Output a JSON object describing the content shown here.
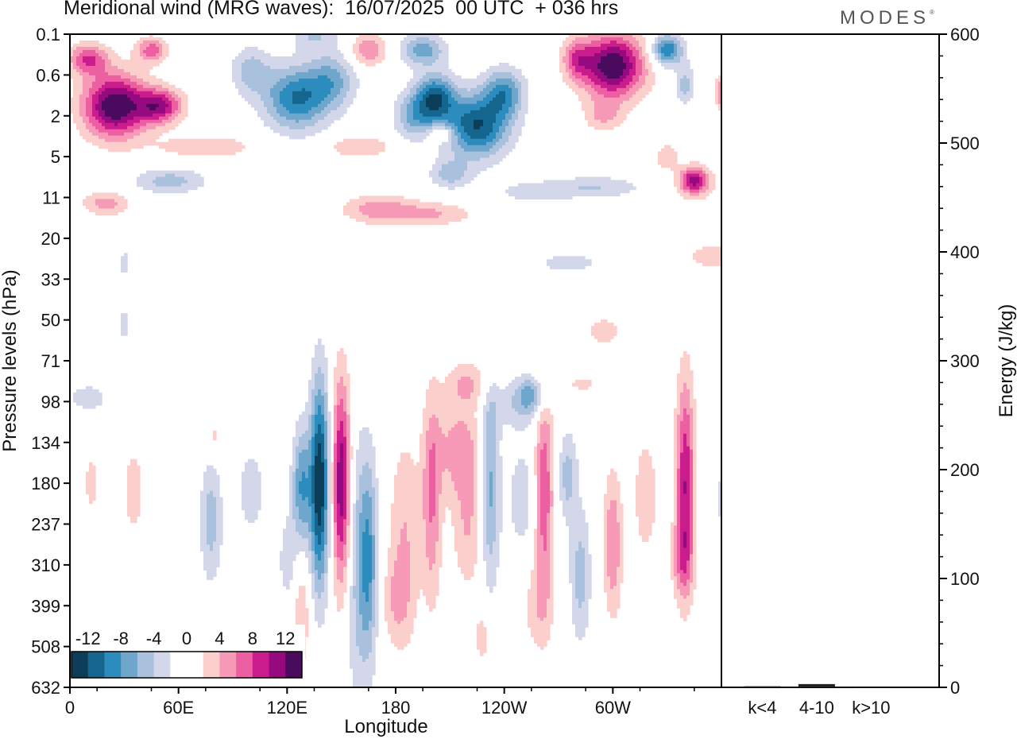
{
  "title": "Meridional wind (MRG waves):  16/07/2025  00 UTC  + 036 hrs",
  "brand": "MODES",
  "brand_mark": "®",
  "chart_data": [
    {
      "type": "heatmap",
      "title": "Meridional wind (MRG waves):  16/07/2025  00 UTC  + 036 hrs",
      "xlabel": "Longitude",
      "ylabel": "Pressure levels (hPa)",
      "x_ticks": [
        {
          "lon": 0,
          "label": "0"
        },
        {
          "lon": 60,
          "label": "60E"
        },
        {
          "lon": 120,
          "label": "120E"
        },
        {
          "lon": 180,
          "label": "180"
        },
        {
          "lon": 240,
          "label": "120W"
        },
        {
          "lon": 300,
          "label": "60W"
        }
      ],
      "x_range": [
        0,
        360
      ],
      "pressure_levels": [
        "0.1",
        "0.6",
        "2",
        "5",
        "11",
        "20",
        "33",
        "50",
        "71",
        "98",
        "134",
        "180",
        "237",
        "310",
        "399",
        "508",
        "632"
      ],
      "y_scale": "model levels, 0.1 hPa at top, 632 hPa at bottom",
      "colorbar": {
        "labels": [
          "-12",
          "-8",
          "-4",
          "0",
          "4",
          "8",
          "12"
        ],
        "placement": "lower-left inside plot",
        "colors": [
          "#0c3e5a",
          "#14668e",
          "#2c8cbd",
          "#6fa6cc",
          "#a9c1dd",
          "#d3d7e9",
          "#ffffff",
          "#ffffff",
          "#fbcfcc",
          "#f79ab7",
          "#ec5fa0",
          "#cb1c8d",
          "#950b7f",
          "#4a0b5e"
        ]
      },
      "features": [
        {
          "lon": 25,
          "level": "1.5",
          "value": 14
        },
        {
          "lon": 125,
          "level": "1.2",
          "value": -10
        },
        {
          "lon": 225,
          "level": "2.5",
          "value": -12
        },
        {
          "lon": 300,
          "level": "0.4",
          "value": 14
        },
        {
          "lon": 138,
          "level": "180",
          "value": -14
        },
        {
          "lon": 150,
          "level": "180",
          "value": 12
        },
        {
          "lon": 165,
          "level": "300",
          "value": -8
        },
        {
          "lon": 200,
          "level": "200",
          "value": 6
        },
        {
          "lon": 232,
          "level": "180",
          "value": -7
        },
        {
          "lon": 262,
          "level": "190",
          "value": 8
        },
        {
          "lon": 340,
          "level": "180",
          "value": 10
        }
      ]
    },
    {
      "type": "bar",
      "ylabel": "Energy (J/kg)",
      "categories": [
        "k<4",
        "4-10",
        "k>10"
      ],
      "values": [
        1,
        3,
        0
      ],
      "ylim": [
        0,
        600
      ],
      "yticks": [
        "0",
        "100",
        "200",
        "300",
        "400",
        "500",
        "600"
      ]
    }
  ]
}
